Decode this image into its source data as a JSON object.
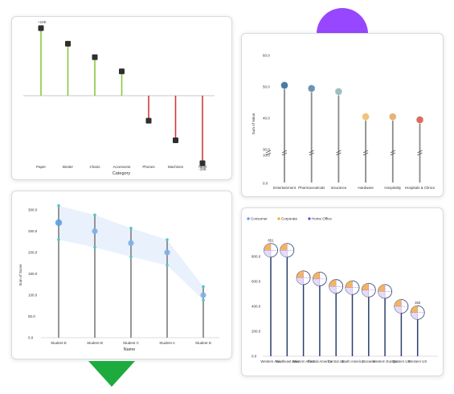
{
  "colors": {
    "positive": "#8cc63e",
    "negative": "#d2383c",
    "marker": "#2f2f2f",
    "stem": "#8a8a8a",
    "stem_blue": "#2b3f6e",
    "band": "#e3eefc",
    "point_blue": "#7eafe8",
    "point_teal": "#56c6c0",
    "decor_purple": "#9747ff",
    "decor_green": "#1eab3e"
  },
  "chart_data": [
    {
      "type": "lollipop",
      "xlabel": "Category",
      "categories": [
        "Paper",
        "Binder",
        "Chairs",
        "Accessorie",
        "Phones",
        "Machines",
        "Tabel"
      ],
      "values": [
        10,
        7.7,
        5.7,
        3.6,
        -3.7,
        -6.6,
        -10
      ],
      "labels": {
        "top": "+10K",
        "bottom": "-10K"
      },
      "ylim": [
        -10,
        10
      ]
    },
    {
      "type": "lollipop",
      "ylabel": "Sum of Value",
      "categories": [
        "Entertainment",
        "Pharmaceuticals",
        "Insurance",
        "Hardware",
        "Hospitality",
        "Hospitals & Clinics"
      ],
      "values": [
        61,
        60,
        59,
        51,
        51,
        50
      ],
      "yticks": [
        "0.0",
        "10.0",
        "30.0",
        "40.0",
        "50.0",
        "60.0"
      ],
      "axis_break": true,
      "marker_colors": [
        "#4a7aa6",
        "#6d93b3",
        "#9ebfbd",
        "#f1c27a",
        "#e8b27a",
        "#d96b5d"
      ]
    },
    {
      "type": "lollipop-range",
      "xlabel": "Name",
      "ylabel": "Sum of Score",
      "categories": [
        "Student E",
        "Student B",
        "Student C",
        "Student A",
        "Student D"
      ],
      "values": [
        270,
        250,
        222,
        200,
        100
      ],
      "upper": [
        310,
        288,
        257,
        230,
        120
      ],
      "lower": [
        230,
        212,
        190,
        170,
        88
      ],
      "yticks": [
        "0.0",
        "50.0",
        "100.0",
        "150.0",
        "200.0",
        "250.0",
        "300.0"
      ],
      "ylim": [
        0,
        300
      ]
    },
    {
      "type": "lollipop-pie",
      "legend": [
        "Consumer",
        "Corporate",
        "Home Office"
      ],
      "legend_colors": [
        "#5b8ff9",
        "#f6a623",
        "#6c3fd8"
      ],
      "categories": [
        "Western Asia",
        "Southeast Asia",
        "Western Africa",
        "Central America",
        "Central US",
        "South America",
        "Oceania",
        "Western Europe",
        "Eastern US",
        "Western US"
      ],
      "values": [
        850,
        850,
        630,
        620,
        560,
        550,
        530,
        520,
        400,
        350
      ],
      "labels": {
        "first": "851",
        "last": "350"
      },
      "yticks": [
        "0.0",
        "200.0",
        "400.0",
        "600.0",
        "800.0"
      ],
      "ylim": [
        0,
        950
      ]
    }
  ]
}
